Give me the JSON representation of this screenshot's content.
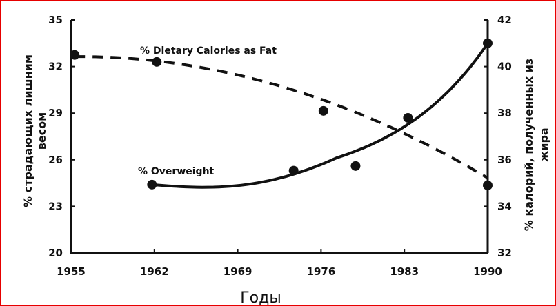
{
  "chart_data": {
    "type": "scatter",
    "xlabel": "Годы",
    "ylabel_left": "% страдающих лишним весом",
    "ylabel_left_lines": [
      "% страдающих лишним",
      "весом"
    ],
    "ylabel_right": "% калорий, полученных из жира",
    "ylabel_right_lines": [
      "% калорий, полученных из",
      "жира"
    ],
    "xlim": [
      1955,
      1990
    ],
    "ylim_left": [
      20,
      35
    ],
    "ylim_right": [
      32,
      42
    ],
    "x_ticks": [
      "1955",
      "1962",
      "1969",
      "1976",
      "1983",
      "1990"
    ],
    "y_left_ticks": [
      "20",
      "23",
      "26",
      "29",
      "32",
      "35"
    ],
    "y_right_ticks": [
      "32",
      "34",
      "36",
      "38",
      "40",
      "42"
    ],
    "grid": false,
    "series": [
      {
        "name": "% Dietary Calories as Fat",
        "axis": "right",
        "line_style": "dashed",
        "x": [
          1955.3,
          1962.2,
          1976.2,
          1983.3,
          1990.0
        ],
        "y": [
          40.5,
          40.2,
          38.1,
          37.8,
          34.9
        ]
      },
      {
        "name": "% Overweight",
        "axis": "left",
        "line_style": "solid",
        "x": [
          1961.8,
          1973.7,
          1978.9,
          1990.0
        ],
        "y": [
          24.4,
          25.3,
          25.6,
          33.5
        ]
      }
    ]
  }
}
